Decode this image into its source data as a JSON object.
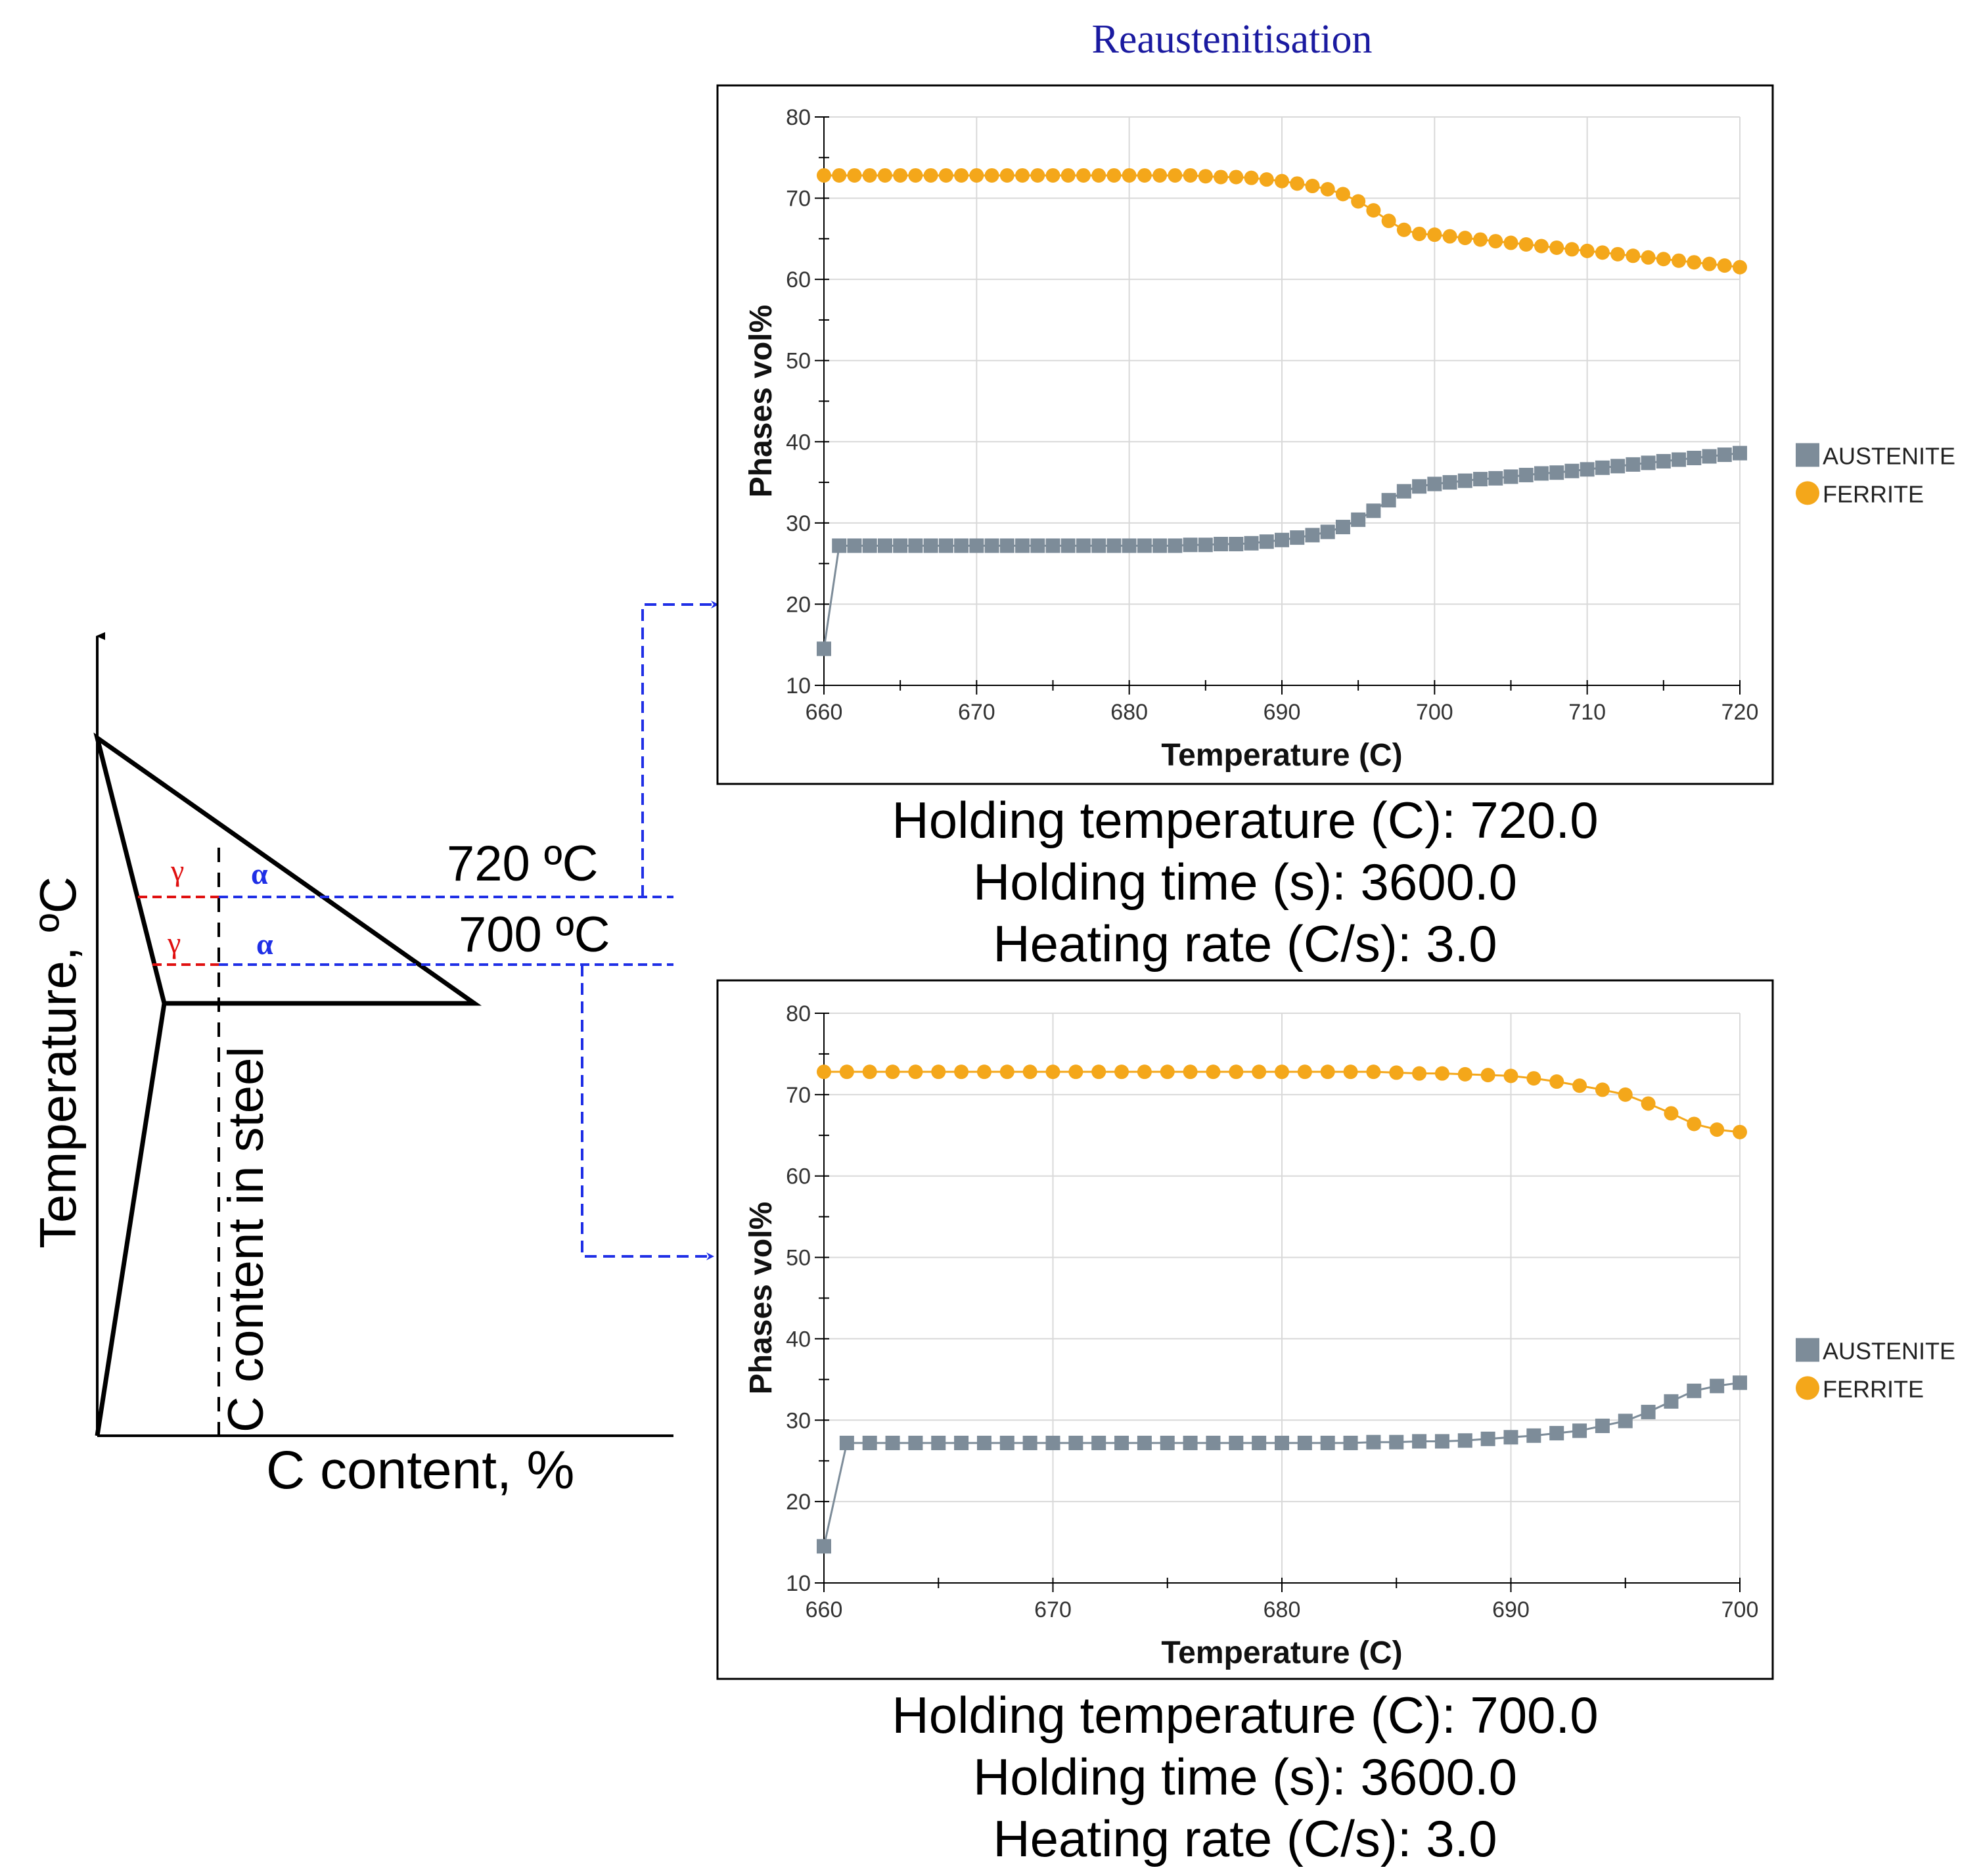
{
  "title": "Reaustenitisation",
  "colors": {
    "austenite": "#7d8c99",
    "ferrite": "#f4a71a",
    "dashed_blue": "#1f2fe6",
    "dashed_red": "#e01010",
    "greek_gamma": "#e01010",
    "greek_alpha": "#1f2fe6",
    "title_blue": "#1a1aa0",
    "grid": "#d9d9d9"
  },
  "phase_diagram": {
    "y_axis_label": "Temperature, ºC",
    "x_axis_label": "C content, %",
    "vertical_line_label": "C content in steel",
    "levels": [
      {
        "label": "720 ºC",
        "gamma": "γ",
        "alpha": "α"
      },
      {
        "label": "700 ºC",
        "gamma": "γ",
        "alpha": "α"
      }
    ]
  },
  "chart_data": [
    {
      "type": "line",
      "xlabel": "Temperature (C)",
      "ylabel": "Phases vol%",
      "xlim": [
        660,
        720
      ],
      "ylim": [
        10,
        80
      ],
      "x_ticks": [
        660,
        670,
        680,
        690,
        700,
        710,
        720
      ],
      "y_ticks": [
        10,
        20,
        30,
        40,
        50,
        60,
        70,
        80
      ],
      "grid": true,
      "legend_position": "right",
      "series": [
        {
          "name": "AUSTENITE",
          "marker": "square",
          "x": [
            660,
            661,
            662,
            663,
            664,
            665,
            666,
            667,
            668,
            669,
            670,
            671,
            672,
            673,
            674,
            675,
            676,
            677,
            678,
            679,
            680,
            681,
            682,
            683,
            684,
            685,
            686,
            687,
            688,
            689,
            690,
            691,
            692,
            693,
            694,
            695,
            696,
            697,
            698,
            699,
            700,
            701,
            702,
            703,
            704,
            705,
            706,
            707,
            708,
            709,
            710,
            711,
            712,
            713,
            714,
            715,
            716,
            717,
            718,
            719,
            720
          ],
          "values": [
            14.5,
            27.2,
            27.2,
            27.2,
            27.2,
            27.2,
            27.2,
            27.2,
            27.2,
            27.2,
            27.2,
            27.2,
            27.2,
            27.2,
            27.2,
            27.2,
            27.2,
            27.2,
            27.2,
            27.2,
            27.2,
            27.2,
            27.2,
            27.2,
            27.3,
            27.3,
            27.4,
            27.4,
            27.5,
            27.7,
            27.9,
            28.2,
            28.5,
            28.9,
            29.5,
            30.4,
            31.5,
            32.8,
            33.9,
            34.5,
            34.8,
            35.0,
            35.2,
            35.4,
            35.5,
            35.7,
            35.9,
            36.1,
            36.2,
            36.4,
            36.6,
            36.8,
            37.0,
            37.2,
            37.4,
            37.6,
            37.8,
            38.0,
            38.2,
            38.4,
            38.6
          ]
        },
        {
          "name": "FERRITE",
          "marker": "circle",
          "x": [
            660,
            661,
            662,
            663,
            664,
            665,
            666,
            667,
            668,
            669,
            670,
            671,
            672,
            673,
            674,
            675,
            676,
            677,
            678,
            679,
            680,
            681,
            682,
            683,
            684,
            685,
            686,
            687,
            688,
            689,
            690,
            691,
            692,
            693,
            694,
            695,
            696,
            697,
            698,
            699,
            700,
            701,
            702,
            703,
            704,
            705,
            706,
            707,
            708,
            709,
            710,
            711,
            712,
            713,
            714,
            715,
            716,
            717,
            718,
            719,
            720
          ],
          "values": [
            72.8,
            72.8,
            72.8,
            72.8,
            72.8,
            72.8,
            72.8,
            72.8,
            72.8,
            72.8,
            72.8,
            72.8,
            72.8,
            72.8,
            72.8,
            72.8,
            72.8,
            72.8,
            72.8,
            72.8,
            72.8,
            72.8,
            72.8,
            72.8,
            72.8,
            72.7,
            72.6,
            72.6,
            72.5,
            72.3,
            72.1,
            71.8,
            71.5,
            71.1,
            70.5,
            69.6,
            68.5,
            67.2,
            66.1,
            65.6,
            65.5,
            65.3,
            65.1,
            64.9,
            64.7,
            64.5,
            64.3,
            64.1,
            63.9,
            63.7,
            63.5,
            63.3,
            63.1,
            62.9,
            62.7,
            62.5,
            62.3,
            62.1,
            61.9,
            61.7,
            61.5
          ]
        }
      ],
      "caption": [
        "Holding temperature (C): 720.0",
        "Holding time (s): 3600.0",
        "Heating rate (C/s): 3.0"
      ]
    },
    {
      "type": "line",
      "xlabel": "Temperature (C)",
      "ylabel": "Phases vol%",
      "xlim": [
        660,
        700
      ],
      "ylim": [
        10,
        80
      ],
      "x_ticks": [
        660,
        670,
        680,
        690,
        700
      ],
      "y_ticks": [
        10,
        20,
        30,
        40,
        50,
        60,
        70,
        80
      ],
      "grid": true,
      "legend_position": "right",
      "series": [
        {
          "name": "AUSTENITE",
          "marker": "square",
          "x": [
            660,
            661,
            662,
            663,
            664,
            665,
            666,
            667,
            668,
            669,
            670,
            671,
            672,
            673,
            674,
            675,
            676,
            677,
            678,
            679,
            680,
            681,
            682,
            683,
            684,
            685,
            686,
            687,
            688,
            689,
            690,
            691,
            692,
            693,
            694,
            695,
            696,
            697,
            698,
            699,
            700
          ],
          "values": [
            14.5,
            27.2,
            27.2,
            27.2,
            27.2,
            27.2,
            27.2,
            27.2,
            27.2,
            27.2,
            27.2,
            27.2,
            27.2,
            27.2,
            27.2,
            27.2,
            27.2,
            27.2,
            27.2,
            27.2,
            27.2,
            27.2,
            27.2,
            27.2,
            27.3,
            27.3,
            27.4,
            27.4,
            27.5,
            27.7,
            27.9,
            28.1,
            28.4,
            28.7,
            29.3,
            29.9,
            31.0,
            32.3,
            33.6,
            34.2,
            34.6
          ]
        },
        {
          "name": "FERRITE",
          "marker": "circle",
          "x": [
            660,
            661,
            662,
            663,
            664,
            665,
            666,
            667,
            668,
            669,
            670,
            671,
            672,
            673,
            674,
            675,
            676,
            677,
            678,
            679,
            680,
            681,
            682,
            683,
            684,
            685,
            686,
            687,
            688,
            689,
            690,
            691,
            692,
            693,
            694,
            695,
            696,
            697,
            698,
            699,
            700
          ],
          "values": [
            72.8,
            72.8,
            72.8,
            72.8,
            72.8,
            72.8,
            72.8,
            72.8,
            72.8,
            72.8,
            72.8,
            72.8,
            72.8,
            72.8,
            72.8,
            72.8,
            72.8,
            72.8,
            72.8,
            72.8,
            72.8,
            72.8,
            72.8,
            72.8,
            72.8,
            72.7,
            72.6,
            72.6,
            72.5,
            72.4,
            72.3,
            72.0,
            71.6,
            71.1,
            70.6,
            70.0,
            68.9,
            67.7,
            66.4,
            65.7,
            65.4
          ]
        }
      ],
      "caption": [
        "Holding temperature (C): 700.0",
        "Holding time (s): 3600.0",
        "Heating rate (C/s): 3.0"
      ]
    }
  ]
}
